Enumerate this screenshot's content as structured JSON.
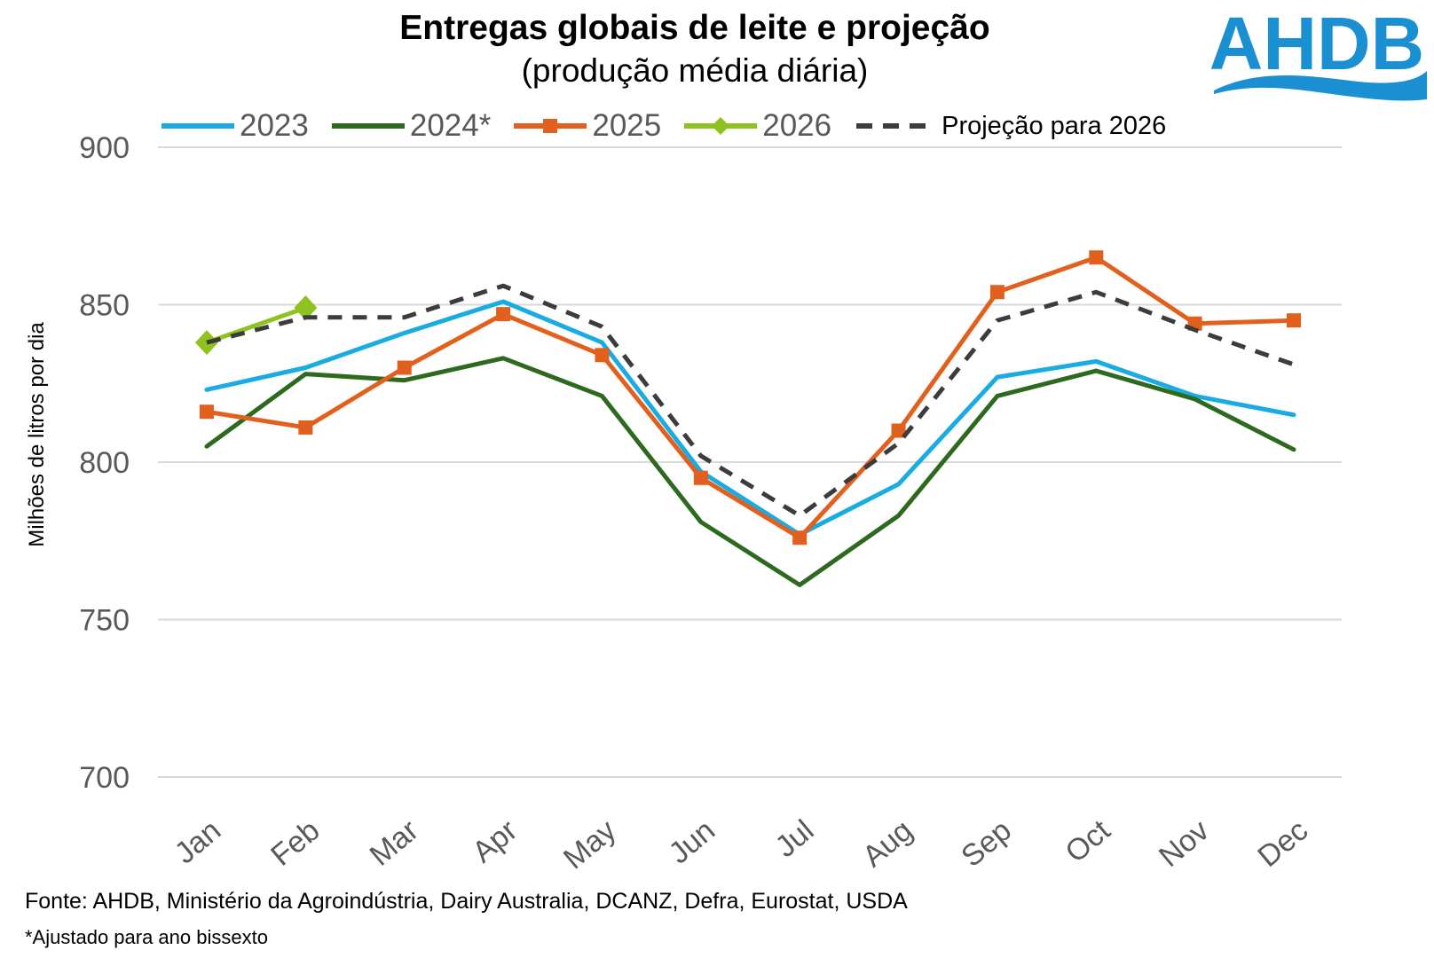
{
  "title": "Entregas globais de leite e projeção",
  "subtitle": "(produção média diária)",
  "logo_text": "AHDB",
  "footer": {
    "source": "Fonte: AHDB, Ministério da Agroindústria, Dairy Australia, DCANZ, Defra, Eurostat, USDA",
    "note": "*Ajustado para ano bissexto"
  },
  "colors": {
    "2023": "#1aabe2",
    "2024": "#2d6a1f",
    "2025": "#e2601e",
    "2026": "#8dc21f",
    "projection": "#3c3c3c",
    "logo": "#1a8fd1"
  },
  "legend": [
    {
      "label": "2023",
      "marker": "none",
      "style": "solid"
    },
    {
      "label": "2024*",
      "marker": "none",
      "style": "solid"
    },
    {
      "label": "2025",
      "marker": "square",
      "style": "solid"
    },
    {
      "label": "2026",
      "marker": "diamond",
      "style": "solid"
    },
    {
      "label": "Projeção para 2026",
      "marker": "none",
      "style": "dashed"
    }
  ],
  "chart_data": {
    "type": "line",
    "title": "Entregas globais de leite e projeção",
    "subtitle": "(produção média diária)",
    "xlabel": "",
    "ylabel": "Milhões de litros por dia",
    "ylim": [
      700,
      900
    ],
    "yticks": [
      700,
      750,
      800,
      850,
      900
    ],
    "grid": true,
    "legend_position": "top",
    "categories": [
      "Jan",
      "Feb",
      "Mar",
      "Apr",
      "May",
      "Jun",
      "Jul",
      "Aug",
      "Sep",
      "Oct",
      "Nov",
      "Dec"
    ],
    "series": [
      {
        "name": "2023",
        "color": "#1aabe2",
        "marker": "none",
        "style": "solid",
        "values": [
          823,
          830,
          841,
          851,
          838,
          797,
          777,
          793,
          827,
          832,
          821,
          815
        ]
      },
      {
        "name": "2024*",
        "color": "#2d6a1f",
        "marker": "none",
        "style": "solid",
        "values": [
          805,
          828,
          826,
          833,
          821,
          781,
          761,
          783,
          821,
          829,
          820,
          804
        ]
      },
      {
        "name": "2025",
        "color": "#e2601e",
        "marker": "square",
        "style": "solid",
        "values": [
          816,
          811,
          830,
          847,
          834,
          795,
          776,
          810,
          854,
          865,
          844,
          845
        ]
      },
      {
        "name": "2026",
        "color": "#8dc21f",
        "marker": "diamond",
        "style": "solid",
        "values": [
          838,
          849,
          null,
          null,
          null,
          null,
          null,
          null,
          null,
          null,
          null,
          null
        ]
      },
      {
        "name": "Projeção para 2026",
        "color": "#3c3c3c",
        "marker": "none",
        "style": "dashed",
        "values": [
          838,
          846,
          846,
          856,
          843,
          802,
          783,
          806,
          845,
          854,
          842,
          831
        ]
      }
    ]
  }
}
